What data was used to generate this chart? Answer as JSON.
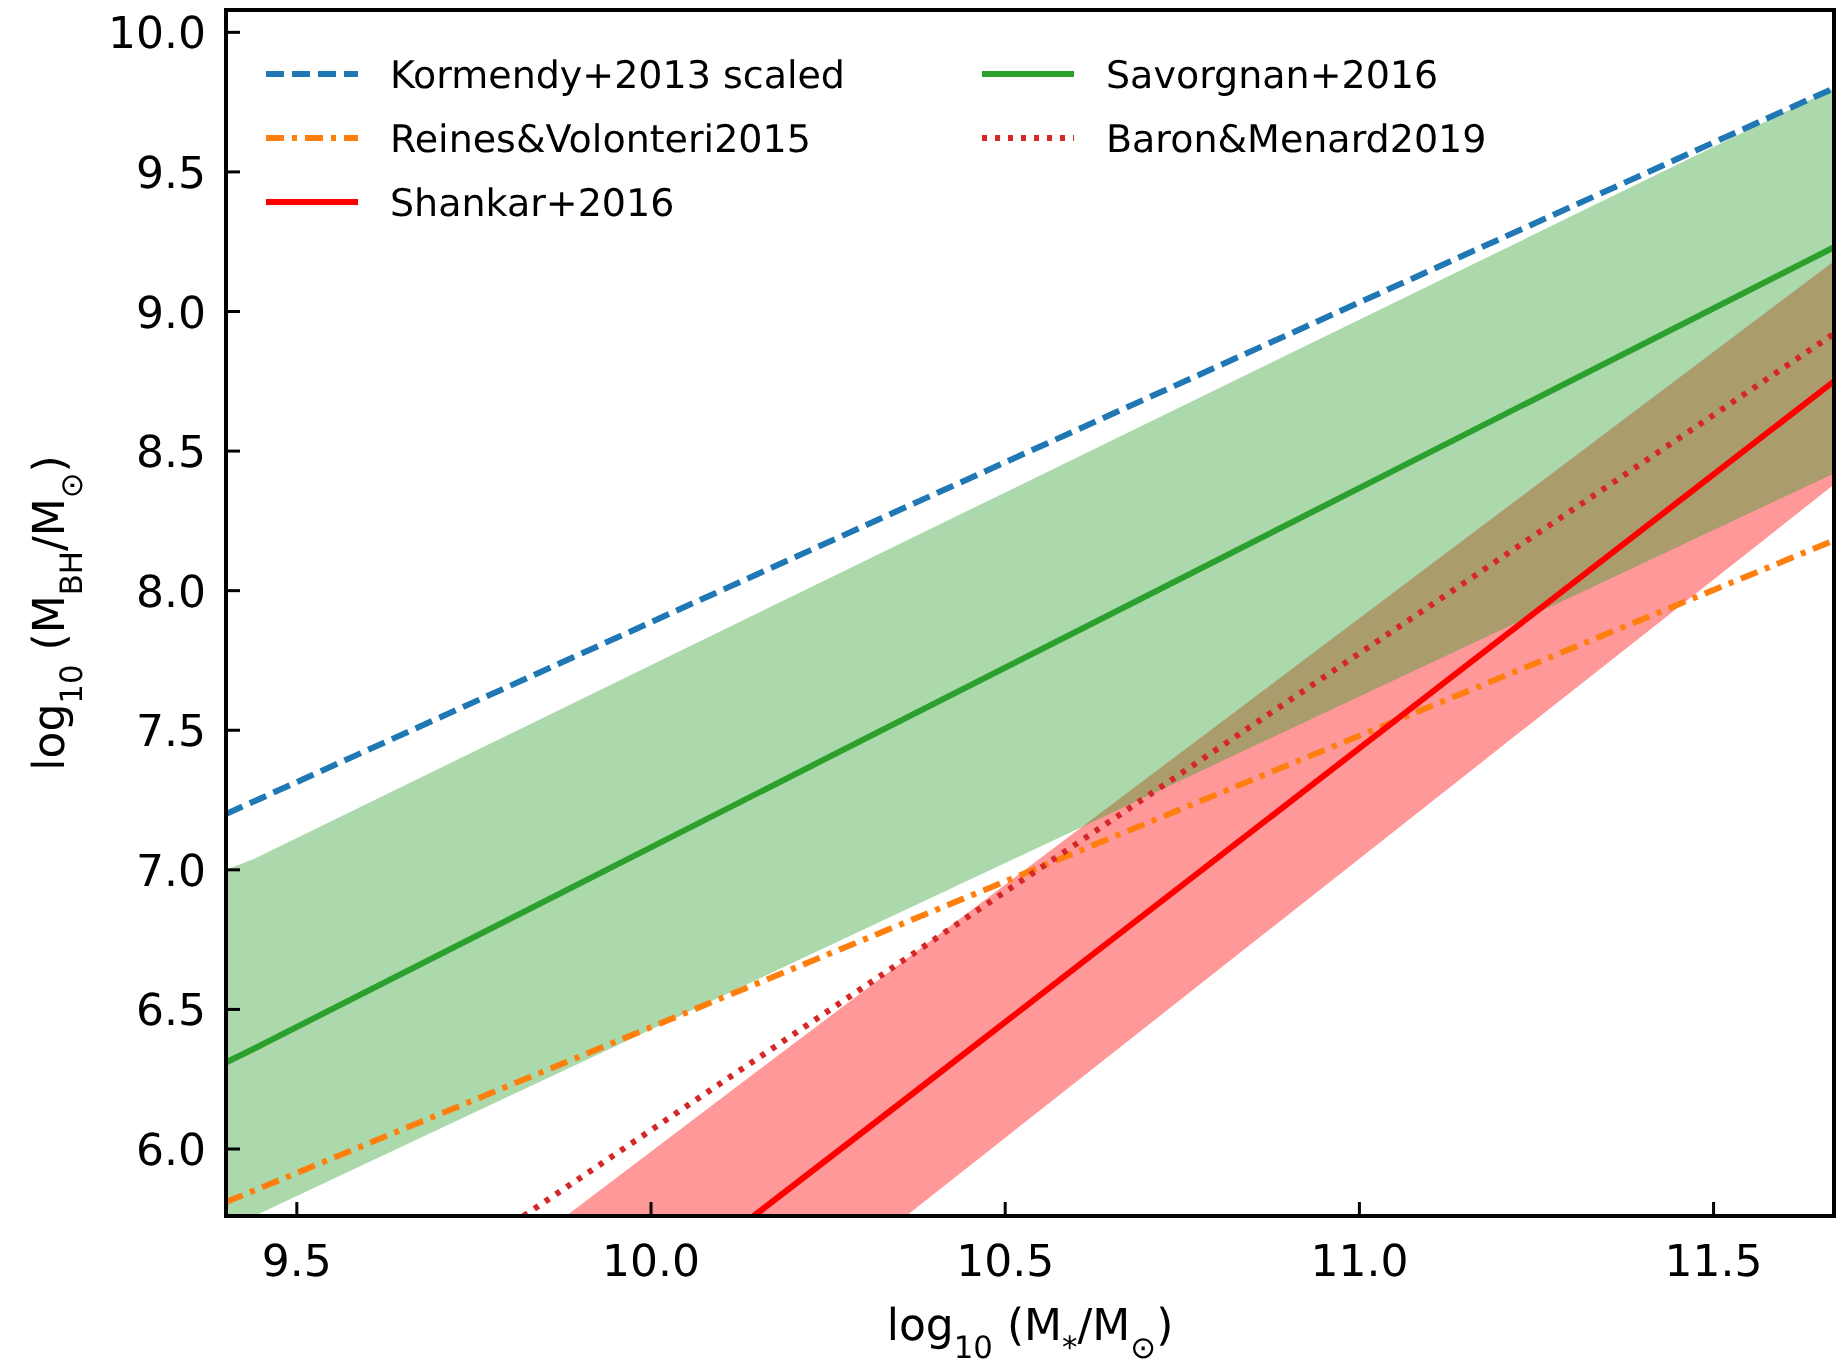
{
  "chart_data": {
    "type": "line",
    "xlabel": "log$_{10}$ (M$_{*}$/M$_{⊙}$)",
    "ylabel": "log$_{10}$ (M$_{BH}$/M$_{⊙}$)",
    "xlim": [
      9.4,
      11.67
    ],
    "ylim": [
      5.76,
      10.08
    ],
    "xticks": [
      {
        "value": 9.5,
        "label": "9.5"
      },
      {
        "value": 10,
        "label": "10.0"
      },
      {
        "value": 10.5,
        "label": "10.5"
      },
      {
        "value": 11,
        "label": "11.0"
      },
      {
        "value": 11.5,
        "label": "11.5"
      }
    ],
    "yticks": [
      {
        "value": 6,
        "label": "6.0"
      },
      {
        "value": 6.5,
        "label": "6.5"
      },
      {
        "value": 7,
        "label": "7.0"
      },
      {
        "value": 7.5,
        "label": "7.5"
      },
      {
        "value": 8,
        "label": "8.0"
      },
      {
        "value": 8.5,
        "label": "8.5"
      },
      {
        "value": 9,
        "label": "9.0"
      },
      {
        "value": 9.5,
        "label": "9.5"
      },
      {
        "value": 10,
        "label": "10.0"
      }
    ],
    "grid": false,
    "legend": "top left",
    "marker": "none",
    "series": [
      {
        "name": "Kormendy+2013 scaled",
        "color": "#1f77b4",
        "line_style": "dashed",
        "x": [
          9.4,
          11.67
        ],
        "values": [
          7.2,
          9.8
        ]
      },
      {
        "name": "Reines&Volonteri2015",
        "color": "#ff7f0e",
        "line_style": "dashdot",
        "x": [
          9.4,
          11.67
        ],
        "values": [
          5.81,
          8.18
        ]
      },
      {
        "name": "Shankar+2016",
        "color": "#ff0000",
        "line_style": "solid",
        "x": [
          9.88,
          10.145,
          10.36,
          11.67
        ],
        "values": [
          null,
          5.76,
          6.18,
          8.75
        ],
        "lower": [
          5.76,
          5.76,
          5.76,
          8.38
        ],
        "upper": [
          5.76,
          6.27,
          6.68,
          9.18
        ]
      },
      {
        "name": "Savorgnan+2016",
        "color": "#2ca02c",
        "line_style": "solid",
        "x": [
          9.4,
          9.44,
          11.67
        ],
        "values": [
          6.31,
          6.36,
          9.23
        ],
        "lower": [
          5.76,
          5.76,
          8.42
        ],
        "upper": [
          7.0,
          7.04,
          9.8
        ]
      },
      {
        "name": "Baron&Menard2019",
        "color": "#d62728",
        "line_style": "dotted",
        "x": [
          9.82,
          11.67
        ],
        "values": [
          5.76,
          8.92
        ]
      }
    ]
  }
}
